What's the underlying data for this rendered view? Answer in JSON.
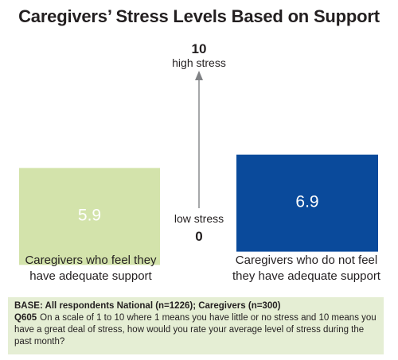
{
  "chart_data": {
    "type": "bar",
    "title": "Caregivers’ Stress Levels Based on Support",
    "categories": [
      "Caregivers who feel they have adequate support",
      "Caregivers who do not feel they have adequate support"
    ],
    "category_lines": [
      [
        "Caregivers who feel they",
        "have adequate support"
      ],
      [
        "Caregivers who do not feel",
        "they have adequate support"
      ]
    ],
    "values": [
      5.9,
      6.9
    ],
    "value_labels": [
      "5.9",
      "6.9"
    ],
    "colors": [
      "#d3e3ab",
      "#0a4a9b"
    ],
    "value_label_colors": [
      "#ffffff",
      "#ffffff"
    ],
    "ylim": [
      0,
      10
    ],
    "axis": {
      "top_value": "10",
      "top_label": "high stress",
      "bottom_value": "0",
      "bottom_label": "low stress",
      "arrow_color": "#808285"
    },
    "grid": false
  },
  "footnote": {
    "base": "BASE: All respondents National (n=1226); Caregivers (n=300)",
    "question_id": "Q605",
    "question": "On a scale of 1 to 10 where 1 means you have little or no stress and 10 means you have a great deal of stress, how would you rate your average level of stress during the past month?",
    "background": "#e5eed4"
  }
}
